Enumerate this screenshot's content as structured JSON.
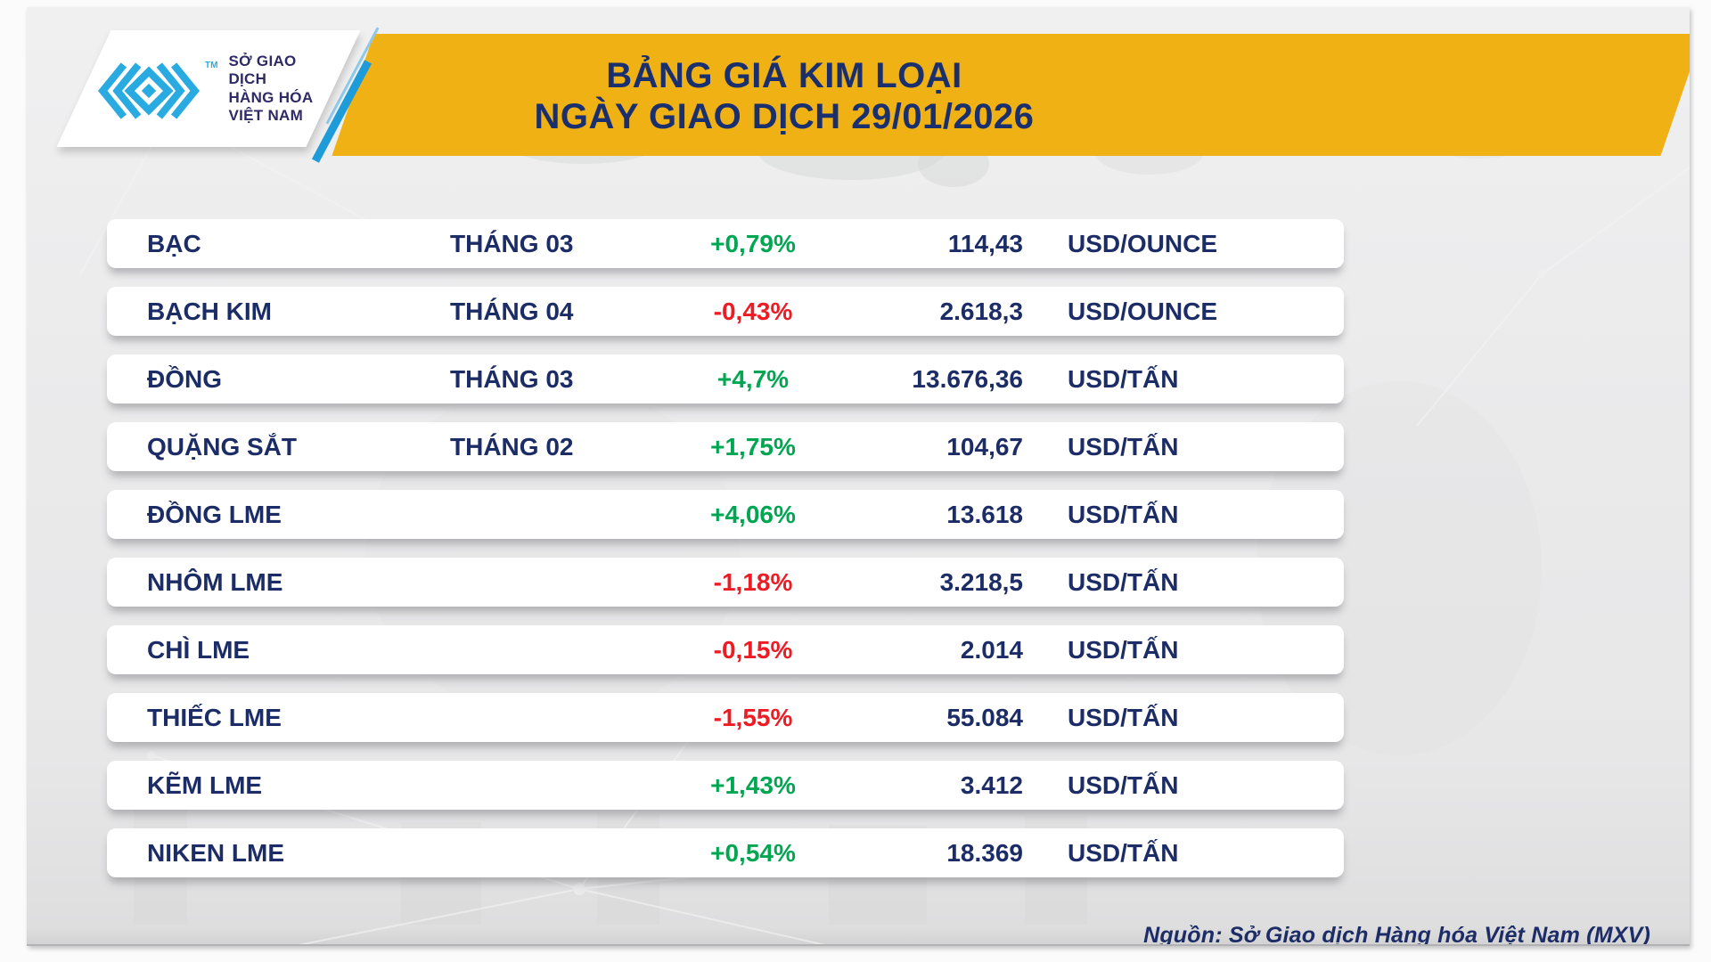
{
  "header": {
    "title_line1": "BẢNG GIÁ KIM LOẠI",
    "title_line2": "NGÀY GIAO DỊCH 29/01/2026",
    "logo": {
      "tm": "TM",
      "org_line1": "SỞ GIAO DỊCH",
      "org_line2": "HÀNG HÓA",
      "org_line3": "VIỆT NAM"
    }
  },
  "table": {
    "rows": [
      {
        "name": "BẠC",
        "month": "THÁNG 03",
        "change": "+0,79%",
        "direction": "up",
        "price": "114,43",
        "unit": "USD/OUNCE"
      },
      {
        "name": "BẠCH KIM",
        "month": "THÁNG 04",
        "change": "-0,43%",
        "direction": "down",
        "price": "2.618,3",
        "unit": "USD/OUNCE"
      },
      {
        "name": "ĐỒNG",
        "month": "THÁNG 03",
        "change": "+4,7%",
        "direction": "up",
        "price": "13.676,36",
        "unit": "USD/TẤN"
      },
      {
        "name": "QUẶNG SẮT",
        "month": "THÁNG 02",
        "change": "+1,75%",
        "direction": "up",
        "price": "104,67",
        "unit": "USD/TẤN"
      },
      {
        "name": "ĐỒNG LME",
        "month": "",
        "change": "+4,06%",
        "direction": "up",
        "price": "13.618",
        "unit": "USD/TẤN"
      },
      {
        "name": "NHÔM LME",
        "month": "",
        "change": "-1,18%",
        "direction": "down",
        "price": "3.218,5",
        "unit": "USD/TẤN"
      },
      {
        "name": "CHÌ LME",
        "month": "",
        "change": "-0,15%",
        "direction": "down",
        "price": "2.014",
        "unit": "USD/TẤN"
      },
      {
        "name": "THIẾC LME",
        "month": "",
        "change": "-1,55%",
        "direction": "down",
        "price": "55.084",
        "unit": "USD/TẤN"
      },
      {
        "name": "KẼM LME",
        "month": "",
        "change": "+1,43%",
        "direction": "up",
        "price": "3.412",
        "unit": "USD/TẤN"
      },
      {
        "name": "NIKEN LME",
        "month": "",
        "change": "+0,54%",
        "direction": "up",
        "price": "18.369",
        "unit": "USD/TẤN"
      }
    ]
  },
  "footer": {
    "source": "Nguồn: Sở Giao dịch Hàng hóa Việt Nam (MXV)"
  },
  "colors": {
    "banner_yellow": "#F0B115",
    "navy_text": "#1C2C66",
    "title_navy": "#1A2F6E",
    "up_green": "#00A651",
    "down_red": "#ED1C24",
    "logo_blue": "#29ABE2",
    "logo_indigo": "#2D2A66",
    "background_gray": "#EAEAEB",
    "row_white": "#FFFFFF"
  },
  "chart_data": {
    "type": "table",
    "title": "BẢNG GIÁ KIM LOẠI",
    "subtitle": "NGÀY GIAO DỊCH 29/01/2026",
    "columns": [
      "name",
      "month",
      "change_pct",
      "price",
      "unit"
    ],
    "rows": [
      [
        "BẠC",
        "THÁNG 03",
        "+0,79%",
        "114,43",
        "USD/OUNCE"
      ],
      [
        "BẠCH KIM",
        "THÁNG 04",
        "-0,43%",
        "2.618,3",
        "USD/OUNCE"
      ],
      [
        "ĐỒNG",
        "THÁNG 03",
        "+4,7%",
        "13.676,36",
        "USD/TẤN"
      ],
      [
        "QUẶNG SẮT",
        "THÁNG 02",
        "+1,75%",
        "104,67",
        "USD/TẤN"
      ],
      [
        "ĐỒNG LME",
        "",
        "+4,06%",
        "13.618",
        "USD/TẤN"
      ],
      [
        "NHÔM LME",
        "",
        "-1,18%",
        "3.218,5",
        "USD/TẤN"
      ],
      [
        "CHÌ LME",
        "",
        "-0,15%",
        "2.014",
        "USD/TẤN"
      ],
      [
        "THIẾC LME",
        "",
        "-1,55%",
        "55.084",
        "USD/TẤN"
      ],
      [
        "KẼM LME",
        "",
        "+1,43%",
        "3.412",
        "USD/TẤN"
      ],
      [
        "NIKEN LME",
        "",
        "+0,54%",
        "18.369",
        "USD/TẤN"
      ]
    ],
    "source_note": "Nguồn: Sở Giao dịch Hàng hóa Việt Nam (MXV)"
  }
}
